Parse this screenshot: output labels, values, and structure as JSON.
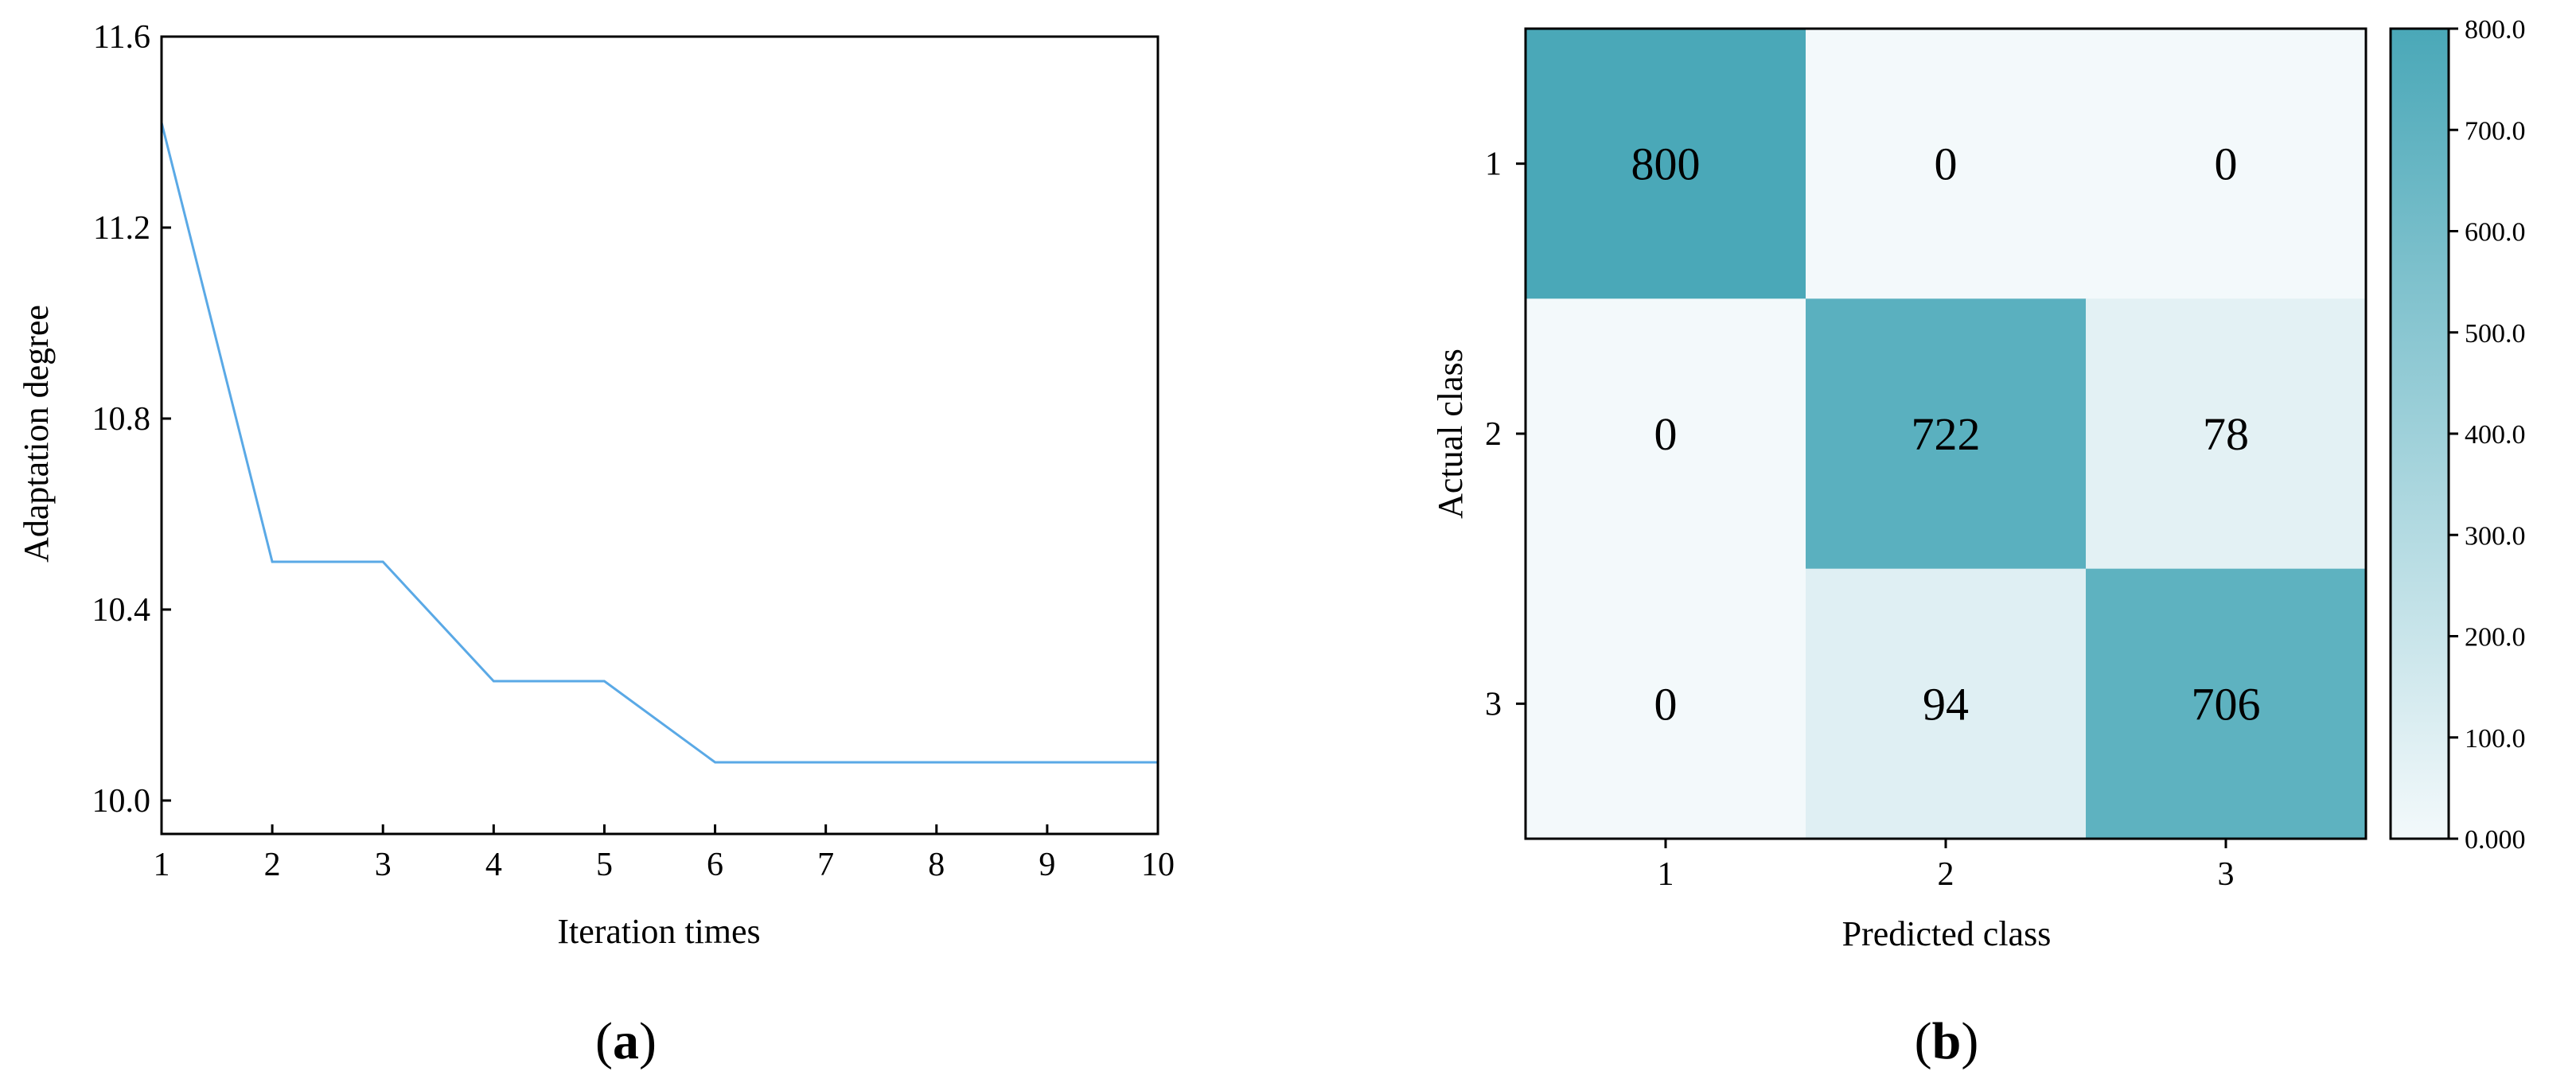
{
  "chart_data": [
    {
      "type": "line",
      "panel_label": "(a)",
      "xlabel": "Iteration times",
      "ylabel": "Adaptation degree",
      "xlim": [
        1,
        10
      ],
      "ylim": [
        9.93,
        11.6
      ],
      "xticks": [
        1,
        2,
        3,
        4,
        5,
        6,
        7,
        8,
        9,
        10
      ],
      "yticks": [
        10.0,
        10.4,
        10.8,
        11.2,
        11.6
      ],
      "ytick_labels": [
        "10.0",
        "10.4",
        "10.8",
        "11.2",
        "11.6"
      ],
      "grid": false,
      "line_color": "#5aa9e6",
      "series": [
        {
          "x": [
            1,
            2,
            3,
            4,
            5,
            6,
            7,
            8,
            9,
            10
          ],
          "values": [
            11.42,
            10.5,
            10.5,
            10.25,
            10.25,
            10.08,
            10.08,
            10.08,
            10.08,
            10.08
          ]
        }
      ]
    },
    {
      "type": "heatmap",
      "panel_label": "(b)",
      "xlabel": "Predicted class",
      "ylabel": "Actual class",
      "x_categories": [
        "1",
        "2",
        "3"
      ],
      "y_categories": [
        "1",
        "2",
        "3"
      ],
      "values": [
        [
          800,
          0,
          0
        ],
        [
          0,
          722,
          78
        ],
        [
          0,
          94,
          706
        ]
      ],
      "colorbar": {
        "min": 0,
        "max": 800,
        "ticks": [
          0,
          100,
          200,
          300,
          400,
          500,
          600,
          700,
          800
        ],
        "tick_labels": [
          "0.000",
          "100.0",
          "200.0",
          "300.0",
          "400.0",
          "500.0",
          "600.0",
          "700.0",
          "800.0"
        ],
        "low_color": "#f3f9fb",
        "high_color": "#4aa8b8"
      }
    }
  ]
}
